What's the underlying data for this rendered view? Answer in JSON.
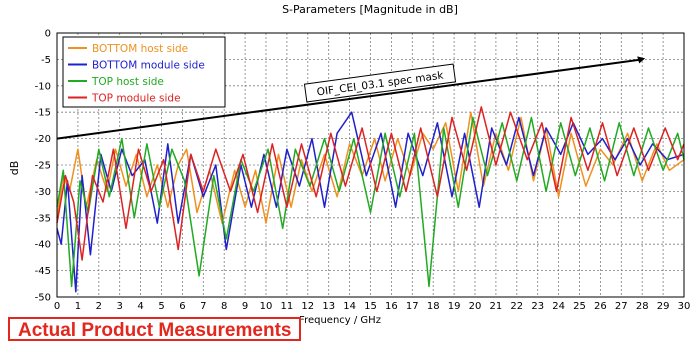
{
  "chart_data": {
    "type": "line",
    "title": "S-Parameters [Magnitude in dB]",
    "xlabel": "Frequency / GHz",
    "ylabel": "dB",
    "xlim": [
      0,
      30
    ],
    "ylim": [
      -50,
      0
    ],
    "x_ticks": [
      "0",
      "1",
      "2",
      "3",
      "4",
      "5",
      "6",
      "7",
      "8",
      "9",
      "10",
      "11",
      "12",
      "13",
      "14",
      "15",
      "16",
      "17",
      "18",
      "19",
      "20",
      "21",
      "22",
      "23",
      "24",
      "25",
      "26",
      "27",
      "28",
      "29",
      "30"
    ],
    "y_ticks": [
      "0",
      "-5",
      "-10",
      "-15",
      "-20",
      "-25",
      "-30",
      "-35",
      "-40",
      "-45",
      "-50"
    ],
    "grid": true,
    "legend_position": "top-left",
    "series": [
      {
        "name": "BOTTOM host side",
        "color": "#f0901e",
        "points": [
          [
            0,
            -35
          ],
          [
            0.3,
            -27
          ],
          [
            0.6,
            -30
          ],
          [
            1,
            -22
          ],
          [
            1.4,
            -33
          ],
          [
            1.9,
            -24
          ],
          [
            2.4,
            -30
          ],
          [
            2.8,
            -22
          ],
          [
            3.3,
            -29
          ],
          [
            3.8,
            -23
          ],
          [
            4.3,
            -31
          ],
          [
            4.8,
            -25
          ],
          [
            5.3,
            -33
          ],
          [
            5.8,
            -25
          ],
          [
            6.2,
            -22
          ],
          [
            6.7,
            -34
          ],
          [
            7.3,
            -26
          ],
          [
            7.9,
            -36
          ],
          [
            8.5,
            -26
          ],
          [
            9,
            -33
          ],
          [
            9.5,
            -26
          ],
          [
            10,
            -36
          ],
          [
            10.6,
            -23
          ],
          [
            11.2,
            -33
          ],
          [
            11.7,
            -24
          ],
          [
            12.2,
            -30
          ],
          [
            12.8,
            -23
          ],
          [
            13.4,
            -31
          ],
          [
            14,
            -21
          ],
          [
            14.6,
            -27
          ],
          [
            15.2,
            -20
          ],
          [
            15.7,
            -28
          ],
          [
            16.3,
            -20
          ],
          [
            16.9,
            -27
          ],
          [
            17.5,
            -19
          ],
          [
            18,
            -22
          ],
          [
            18.6,
            -17
          ],
          [
            19.2,
            -30
          ],
          [
            19.8,
            -15
          ],
          [
            20.4,
            -29
          ],
          [
            21,
            -19
          ],
          [
            21.6,
            -26
          ],
          [
            22.2,
            -16
          ],
          [
            22.8,
            -28
          ],
          [
            23.4,
            -18
          ],
          [
            24,
            -31
          ],
          [
            24.6,
            -19
          ],
          [
            25.3,
            -29
          ],
          [
            26,
            -22
          ],
          [
            26.6,
            -25
          ],
          [
            27.3,
            -19
          ],
          [
            28,
            -28
          ],
          [
            28.7,
            -21
          ],
          [
            29.3,
            -26
          ],
          [
            30,
            -24
          ]
        ]
      },
      {
        "name": "BOTTOM module side",
        "color": "#2020cc",
        "points": [
          [
            0,
            -37
          ],
          [
            0.2,
            -40
          ],
          [
            0.5,
            -28
          ],
          [
            0.9,
            -49
          ],
          [
            1.2,
            -27
          ],
          [
            1.6,
            -42
          ],
          [
            2.1,
            -23
          ],
          [
            2.6,
            -30
          ],
          [
            3.1,
            -22
          ],
          [
            3.6,
            -27
          ],
          [
            4.2,
            -24
          ],
          [
            4.8,
            -36
          ],
          [
            5.3,
            -21
          ],
          [
            5.8,
            -36
          ],
          [
            6.4,
            -23
          ],
          [
            7,
            -31
          ],
          [
            7.6,
            -25
          ],
          [
            8.1,
            -41
          ],
          [
            8.8,
            -25
          ],
          [
            9.3,
            -33
          ],
          [
            9.9,
            -23
          ],
          [
            10.5,
            -33
          ],
          [
            11,
            -22
          ],
          [
            11.6,
            -29
          ],
          [
            12.2,
            -20
          ],
          [
            12.8,
            -33
          ],
          [
            13.4,
            -19
          ],
          [
            14.1,
            -15
          ],
          [
            14.8,
            -27
          ],
          [
            15.5,
            -19
          ],
          [
            16.2,
            -33
          ],
          [
            16.8,
            -19
          ],
          [
            17.5,
            -27
          ],
          [
            18.2,
            -17
          ],
          [
            18.9,
            -31
          ],
          [
            19.5,
            -19
          ],
          [
            20.2,
            -33
          ],
          [
            20.8,
            -18
          ],
          [
            21.5,
            -25
          ],
          [
            22.1,
            -16
          ],
          [
            22.8,
            -27
          ],
          [
            23.4,
            -18
          ],
          [
            24.1,
            -23
          ],
          [
            24.7,
            -17
          ],
          [
            25.4,
            -23
          ],
          [
            26.1,
            -20
          ],
          [
            26.7,
            -24
          ],
          [
            27.3,
            -20
          ],
          [
            27.9,
            -25
          ],
          [
            28.5,
            -21
          ],
          [
            29.2,
            -24
          ],
          [
            30,
            -23
          ]
        ]
      },
      {
        "name": "TOP host side",
        "color": "#22aa22",
        "points": [
          [
            0,
            -33
          ],
          [
            0.3,
            -26
          ],
          [
            0.7,
            -48
          ],
          [
            1.1,
            -28
          ],
          [
            1.5,
            -34
          ],
          [
            2,
            -22
          ],
          [
            2.5,
            -31
          ],
          [
            3.1,
            -20
          ],
          [
            3.7,
            -35
          ],
          [
            4.3,
            -21
          ],
          [
            4.9,
            -33
          ],
          [
            5.5,
            -22
          ],
          [
            6.1,
            -28
          ],
          [
            6.8,
            -46
          ],
          [
            7.5,
            -27
          ],
          [
            8.1,
            -39
          ],
          [
            8.8,
            -24
          ],
          [
            9.4,
            -30
          ],
          [
            10.1,
            -22
          ],
          [
            10.8,
            -37
          ],
          [
            11.4,
            -22
          ],
          [
            12.1,
            -29
          ],
          [
            12.8,
            -20
          ],
          [
            13.5,
            -30
          ],
          [
            14.2,
            -20
          ],
          [
            15,
            -34
          ],
          [
            15.7,
            -19
          ],
          [
            16.4,
            -31
          ],
          [
            17.1,
            -19
          ],
          [
            17.8,
            -48
          ],
          [
            18.5,
            -18
          ],
          [
            19.2,
            -33
          ],
          [
            19.9,
            -16
          ],
          [
            20.6,
            -27
          ],
          [
            21.3,
            -17
          ],
          [
            22,
            -28
          ],
          [
            22.7,
            -16
          ],
          [
            23.4,
            -30
          ],
          [
            24.1,
            -17
          ],
          [
            24.8,
            -27
          ],
          [
            25.5,
            -18
          ],
          [
            26.2,
            -28
          ],
          [
            26.9,
            -17
          ],
          [
            27.6,
            -27
          ],
          [
            28.3,
            -18
          ],
          [
            29,
            -26
          ],
          [
            29.7,
            -19
          ],
          [
            30,
            -24
          ]
        ]
      },
      {
        "name": "TOP module side",
        "color": "#dd2222",
        "points": [
          [
            0,
            -36
          ],
          [
            0.4,
            -27
          ],
          [
            0.8,
            -32
          ],
          [
            1.2,
            -43
          ],
          [
            1.7,
            -27
          ],
          [
            2.2,
            -32
          ],
          [
            2.7,
            -22
          ],
          [
            3.3,
            -37
          ],
          [
            3.9,
            -22
          ],
          [
            4.5,
            -30
          ],
          [
            5.1,
            -24
          ],
          [
            5.8,
            -41
          ],
          [
            6.4,
            -23
          ],
          [
            7,
            -30
          ],
          [
            7.6,
            -22
          ],
          [
            8.3,
            -30
          ],
          [
            8.9,
            -23
          ],
          [
            9.6,
            -34
          ],
          [
            10.3,
            -21
          ],
          [
            11,
            -33
          ],
          [
            11.7,
            -21
          ],
          [
            12.4,
            -31
          ],
          [
            13.1,
            -19
          ],
          [
            13.8,
            -29
          ],
          [
            14.6,
            -18
          ],
          [
            15.3,
            -30
          ],
          [
            16,
            -19
          ],
          [
            16.7,
            -30
          ],
          [
            17.4,
            -18
          ],
          [
            18.2,
            -31
          ],
          [
            18.9,
            -16
          ],
          [
            19.6,
            -26
          ],
          [
            20.3,
            -14
          ],
          [
            21,
            -25
          ],
          [
            21.7,
            -15
          ],
          [
            22.5,
            -24
          ],
          [
            23.2,
            -17
          ],
          [
            23.9,
            -30
          ],
          [
            24.6,
            -16
          ],
          [
            25.4,
            -26
          ],
          [
            26.1,
            -17
          ],
          [
            26.8,
            -27
          ],
          [
            27.6,
            -18
          ],
          [
            28.3,
            -26
          ],
          [
            29.1,
            -18
          ],
          [
            29.7,
            -24
          ],
          [
            30,
            -21
          ]
        ]
      }
    ],
    "spec_mask": {
      "label": "OIF_CEI_03.1 spec mask",
      "color": "#000000",
      "points": [
        [
          0,
          -20
        ],
        [
          28,
          -5
        ]
      ]
    }
  },
  "banner": {
    "text": "Actual Product Measurements",
    "color": "#e3271d"
  }
}
